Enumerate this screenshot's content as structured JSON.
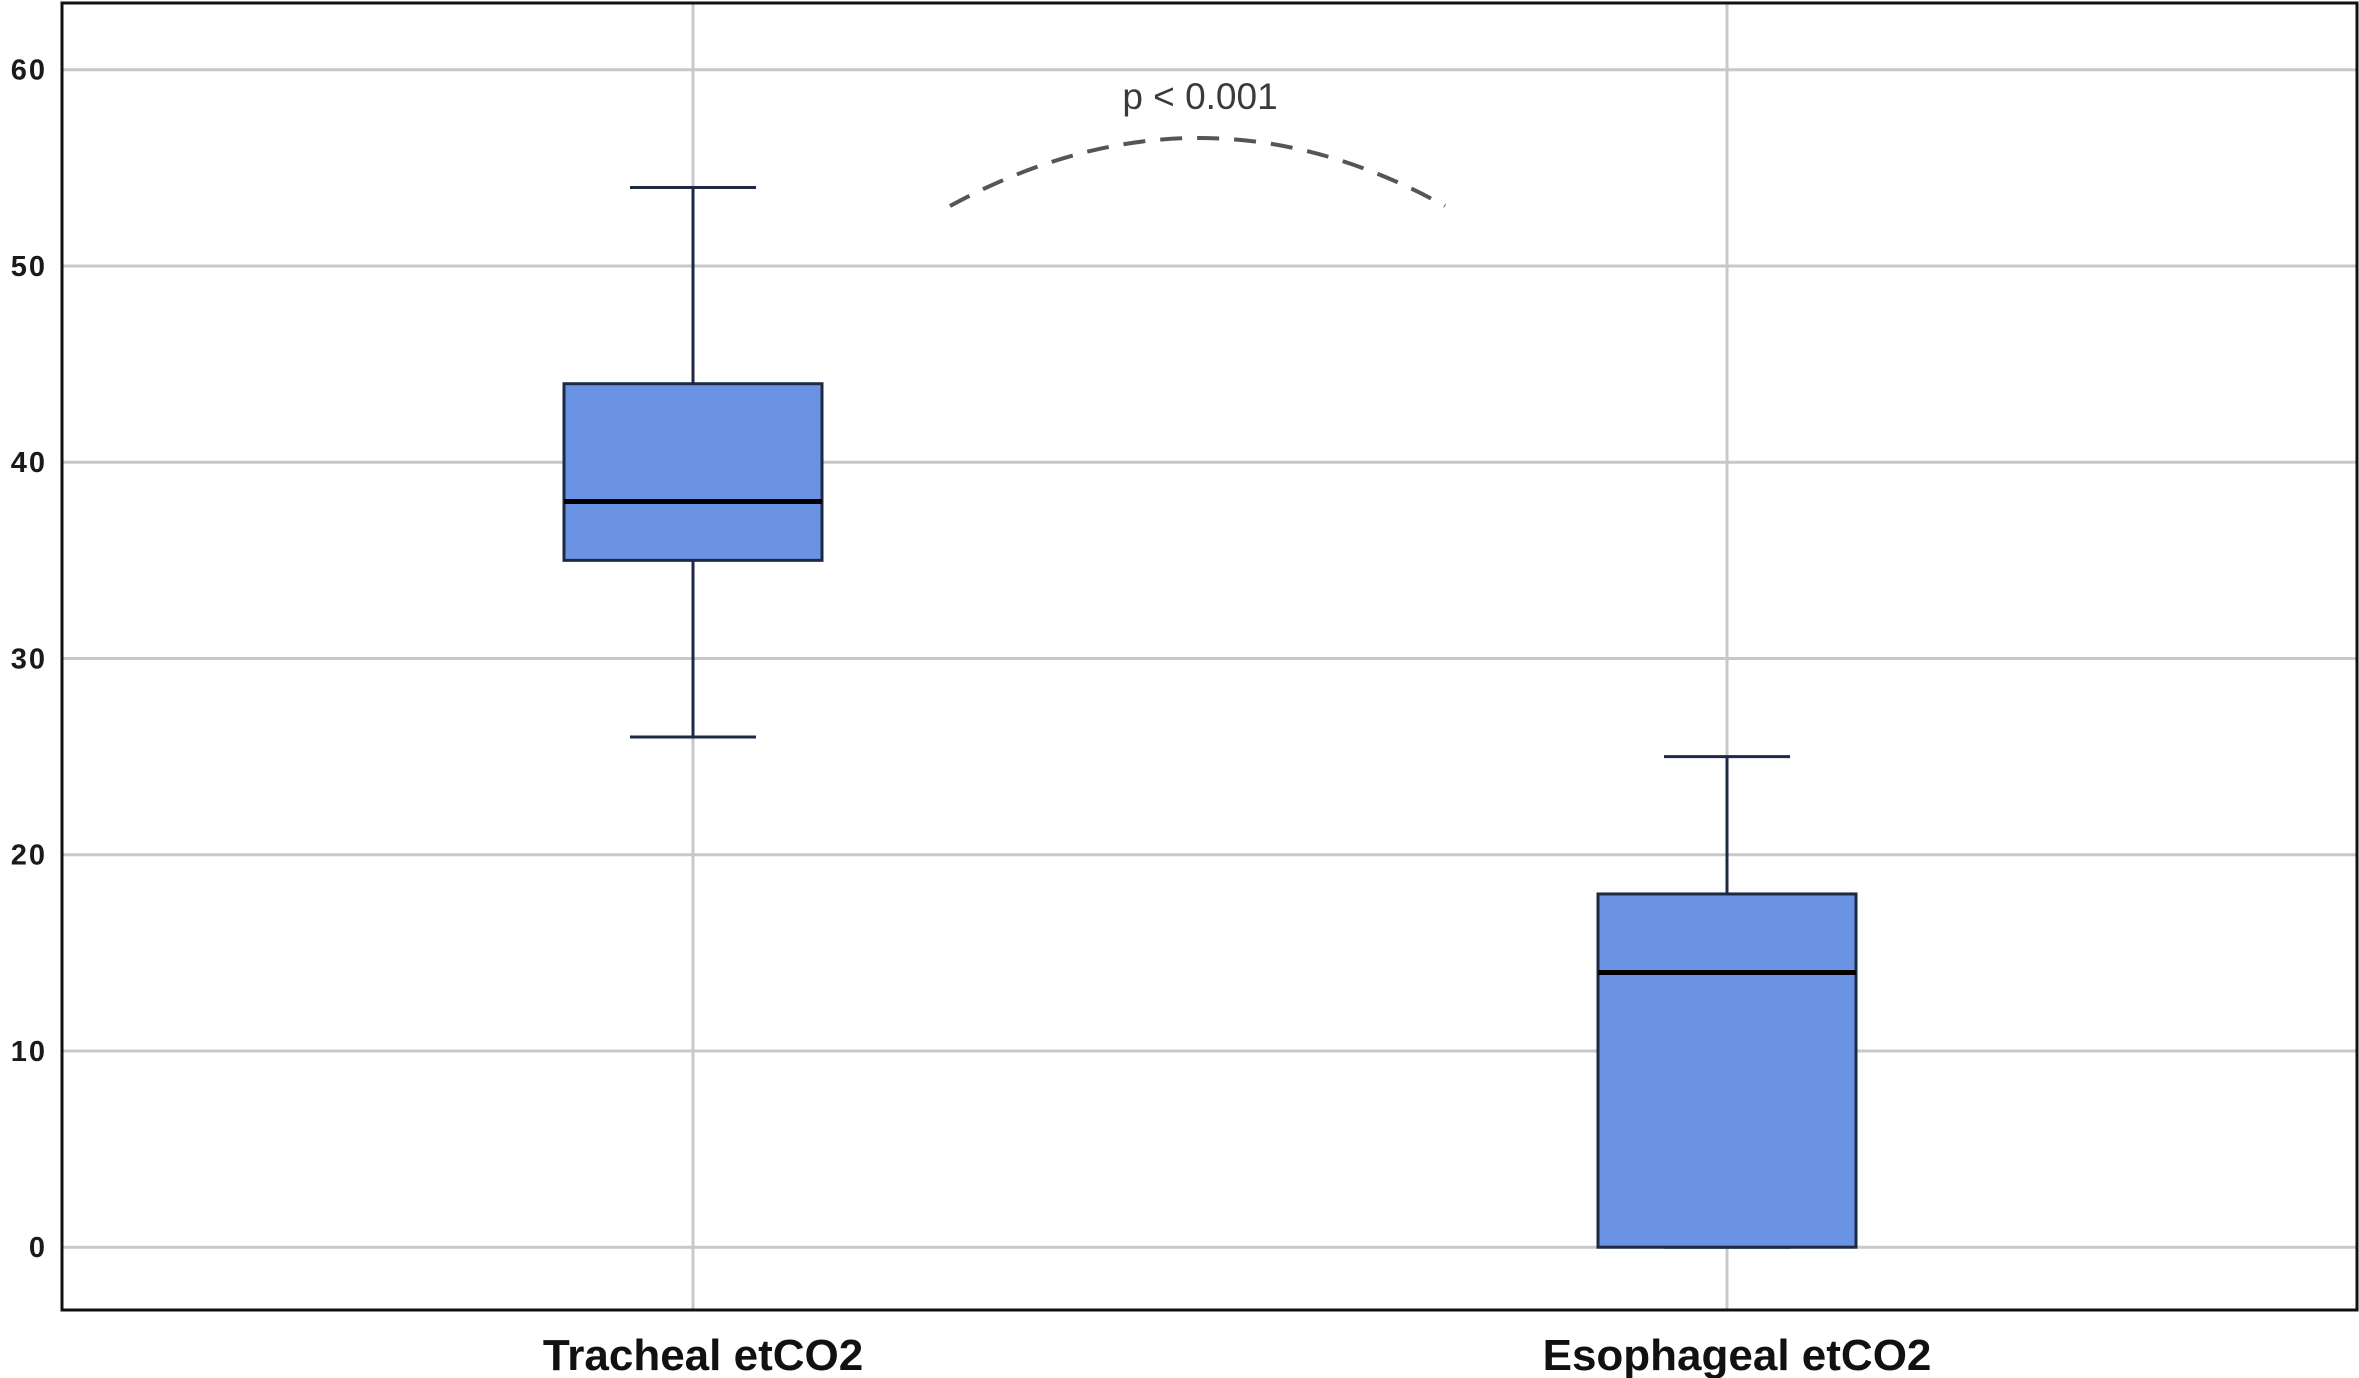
{
  "chart_data": {
    "type": "box",
    "title": "",
    "xlabel": "",
    "ylabel": "",
    "ylim": [
      -3.2,
      63.4
    ],
    "yticks": [
      0,
      10,
      20,
      30,
      40,
      50,
      60
    ],
    "grid": true,
    "categories": [
      "Tracheal etCO2",
      "Esophageal etCO2"
    ],
    "boxes": [
      {
        "category": "Tracheal etCO2",
        "min": 26,
        "q1": 35,
        "median": 38,
        "q3": 44,
        "max": 54
      },
      {
        "category": "Esophageal etCO2",
        "min": 0,
        "q1": 0,
        "median": 14,
        "q3": 18,
        "max": 25
      }
    ],
    "annotation": {
      "text": "p < 0.001",
      "between": [
        "Tracheal etCO2",
        "Esophageal etCO2"
      ],
      "style": "dashed arc"
    },
    "colors": {
      "box_fill": "#6b93e3",
      "box_stroke": "#1c2a45",
      "grid": "#c8c8c8",
      "axis": "#111111",
      "annotation_line": "#555555"
    }
  }
}
